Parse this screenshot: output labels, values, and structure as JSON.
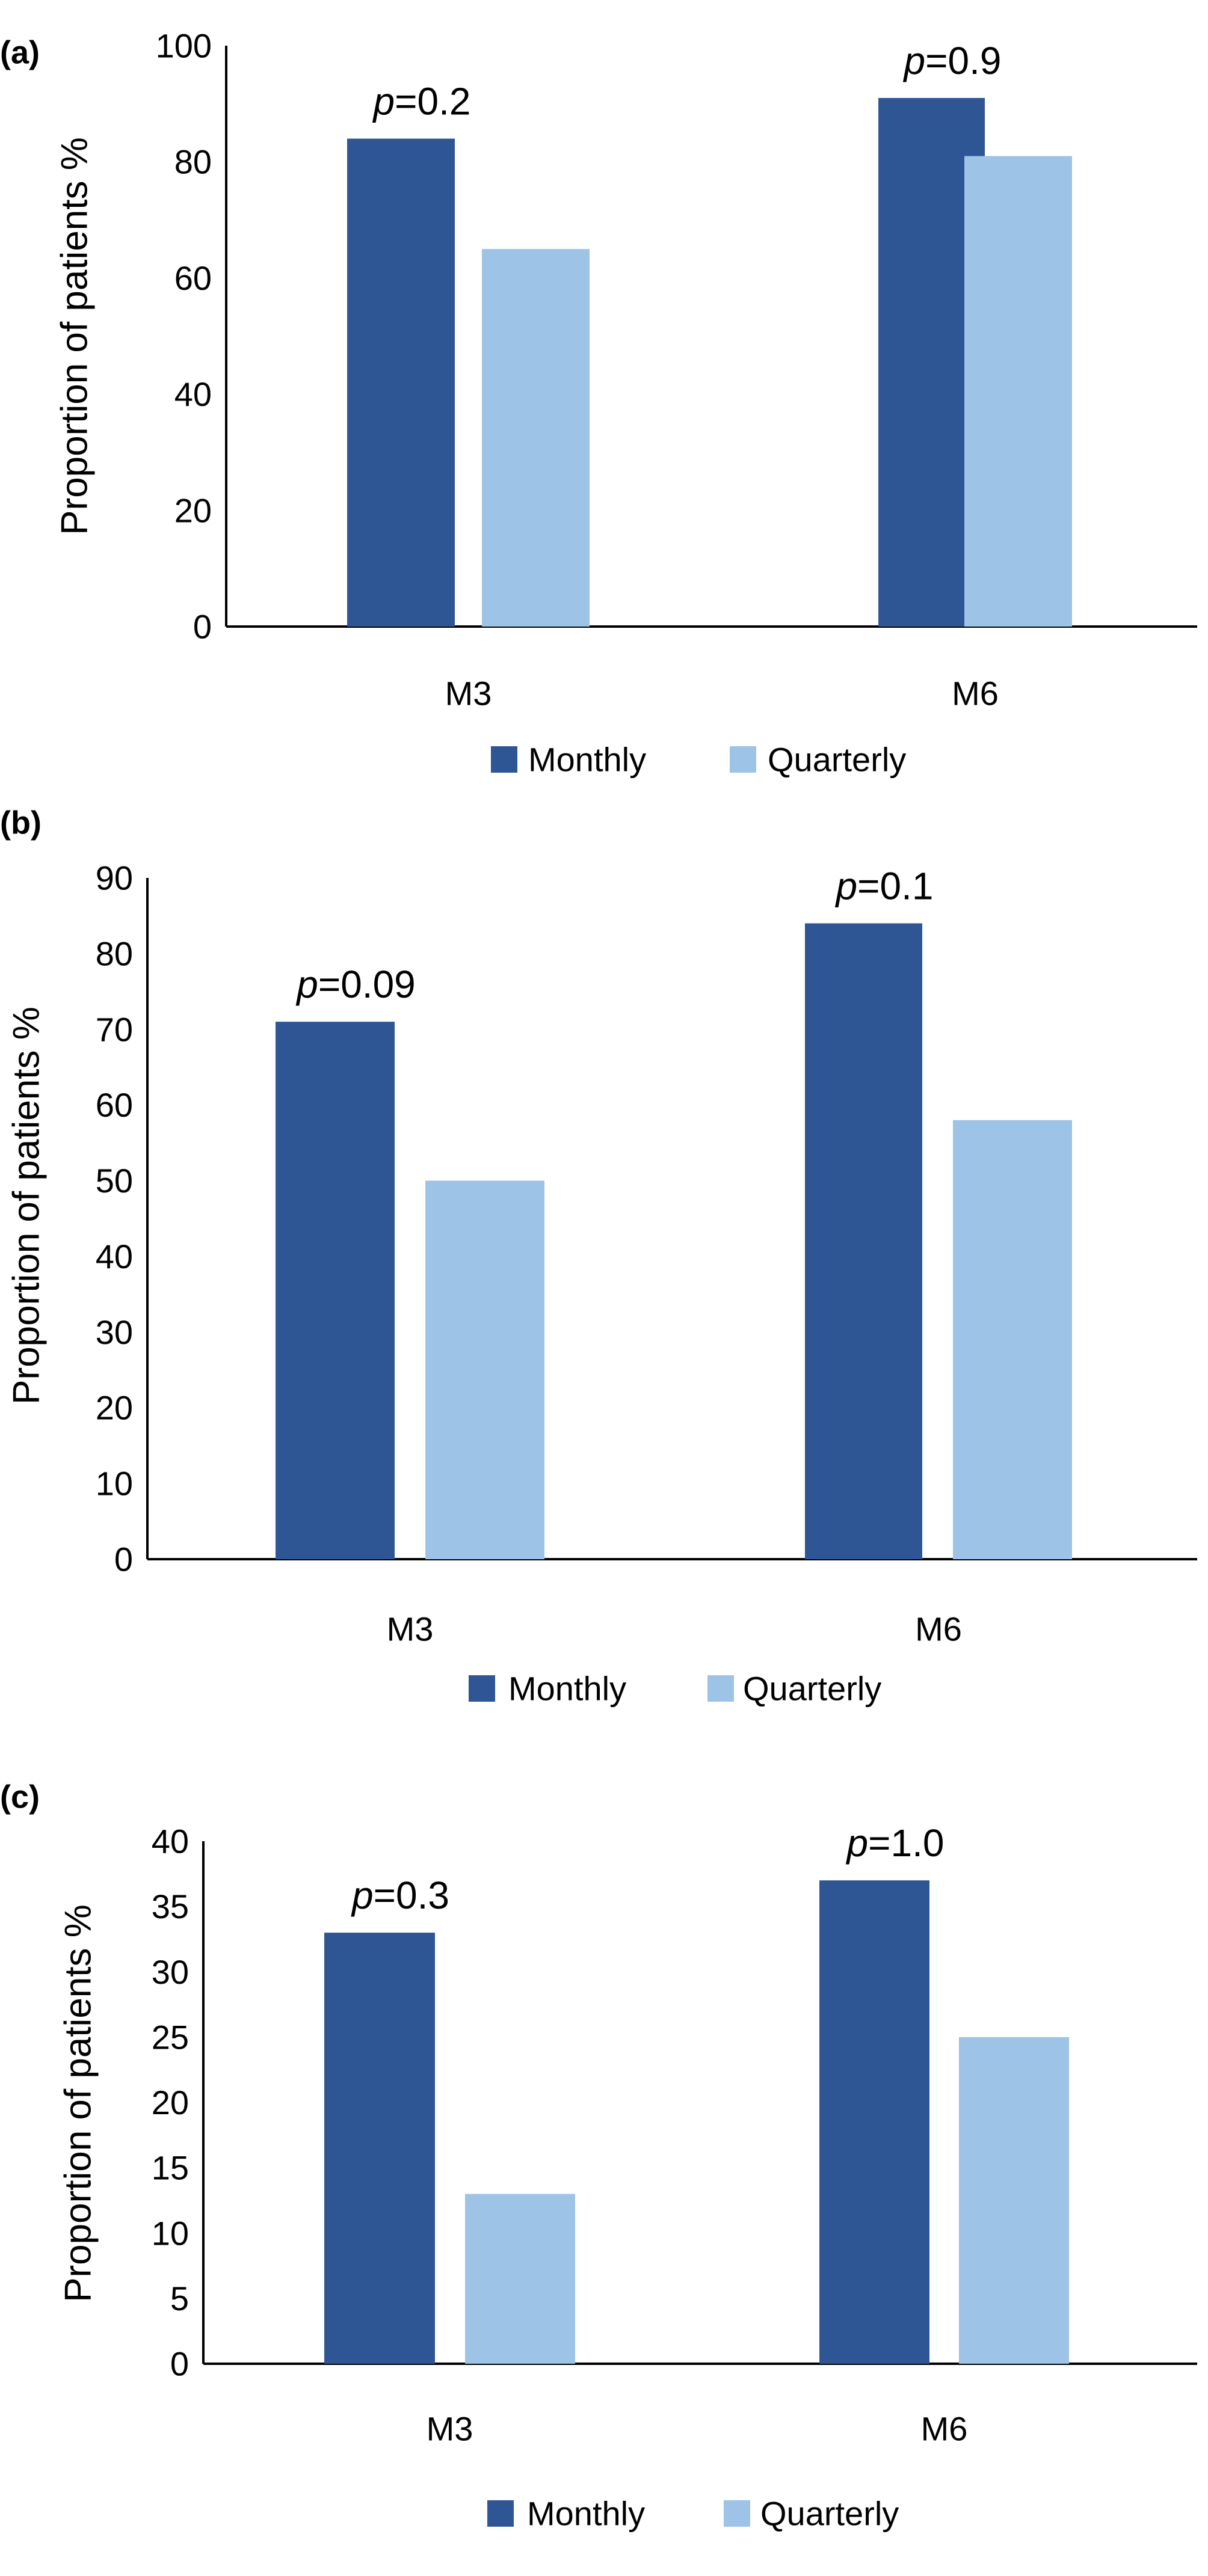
{
  "colors": {
    "monthly": "#2E5594",
    "quarterly": "#9DC3E6",
    "axis": "#000000"
  },
  "chart_data": [
    {
      "panel_label": "(a)",
      "type": "bar",
      "categories": [
        "M3",
        "M6"
      ],
      "series": [
        {
          "name": "Monthly",
          "values": [
            84,
            91
          ]
        },
        {
          "name": "Quarterly",
          "values": [
            65,
            81
          ]
        }
      ],
      "annotations": [
        {
          "prefix": "p",
          "value": "=0.2",
          "category": "M3"
        },
        {
          "prefix": "p",
          "value": "=0.9",
          "category": "M6"
        }
      ],
      "ylabel": "Proportion of patients %",
      "ylim": [
        0,
        100
      ],
      "yticks": [
        "0",
        "20",
        "40",
        "60",
        "80",
        "100"
      ],
      "grid": false,
      "legend_position": "bottom"
    },
    {
      "panel_label": "(b)",
      "type": "bar",
      "categories": [
        "M3",
        "M6"
      ],
      "series": [
        {
          "name": "Monthly",
          "values": [
            71,
            84
          ]
        },
        {
          "name": "Quarterly",
          "values": [
            50,
            58
          ]
        }
      ],
      "annotations": [
        {
          "prefix": "p",
          "value": "=0.09",
          "category": "M3"
        },
        {
          "prefix": "p",
          "value": "=0.1",
          "category": "M6"
        }
      ],
      "ylabel": "Proportion of patients %",
      "ylim": [
        0,
        90
      ],
      "yticks": [
        "0",
        "10",
        "20",
        "30",
        "40",
        "50",
        "60",
        "70",
        "80",
        "90"
      ],
      "grid": false,
      "legend_position": "bottom"
    },
    {
      "panel_label": "(c)",
      "type": "bar",
      "categories": [
        "M3",
        "M6"
      ],
      "series": [
        {
          "name": "Monthly",
          "values": [
            33,
            37
          ]
        },
        {
          "name": "Quarterly",
          "values": [
            13,
            25
          ]
        }
      ],
      "annotations": [
        {
          "prefix": "p",
          "value": "=0.3",
          "category": "M3"
        },
        {
          "prefix": "p",
          "value": "=1.0",
          "category": "M6"
        }
      ],
      "ylabel": "Proportion of patients %",
      "ylim": [
        0,
        40
      ],
      "yticks": [
        "0",
        "5",
        "10",
        "15",
        "20",
        "25",
        "30",
        "35",
        "40"
      ],
      "grid": false,
      "legend_position": "bottom"
    }
  ]
}
